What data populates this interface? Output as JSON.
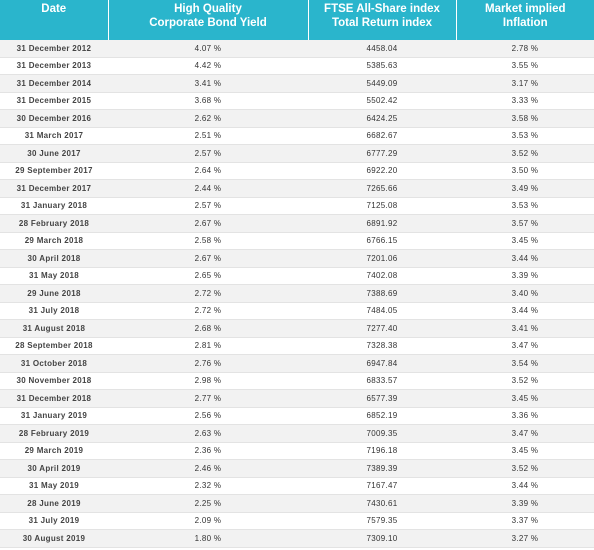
{
  "headers": {
    "date": "Date",
    "yield": "High Quality\nCorporate Bond Yield",
    "ftse": "FTSE All-Share index\nTotal Return index",
    "inflation": "Market implied\nInflation"
  },
  "rows": [
    {
      "date": "31 December 2012",
      "yield": "4.07 %",
      "ftse": "4458.04",
      "inflation": "2.78 %"
    },
    {
      "date": "31 December 2013",
      "yield": "4.42 %",
      "ftse": "5385.63",
      "inflation": "3.55 %"
    },
    {
      "date": "31 December 2014",
      "yield": "3.41 %",
      "ftse": "5449.09",
      "inflation": "3.17 %"
    },
    {
      "date": "31 December 2015",
      "yield": "3.68 %",
      "ftse": "5502.42",
      "inflation": "3.33 %"
    },
    {
      "date": "30 December 2016",
      "yield": "2.62 %",
      "ftse": "6424.25",
      "inflation": "3.58 %"
    },
    {
      "date": "31 March 2017",
      "yield": "2.51 %",
      "ftse": "6682.67",
      "inflation": "3.53 %"
    },
    {
      "date": "30 June 2017",
      "yield": "2.57 %",
      "ftse": "6777.29",
      "inflation": "3.52 %"
    },
    {
      "date": "29 September 2017",
      "yield": "2.64 %",
      "ftse": "6922.20",
      "inflation": "3.50 %"
    },
    {
      "date": "31 December 2017",
      "yield": "2.44 %",
      "ftse": "7265.66",
      "inflation": "3.49 %"
    },
    {
      "date": "31 January 2018",
      "yield": "2.57 %",
      "ftse": "7125.08",
      "inflation": "3.53 %"
    },
    {
      "date": "28 February 2018",
      "yield": "2.67 %",
      "ftse": "6891.92",
      "inflation": "3.57 %"
    },
    {
      "date": "29 March 2018",
      "yield": "2.58 %",
      "ftse": "6766.15",
      "inflation": "3.45 %"
    },
    {
      "date": "30 April 2018",
      "yield": "2.67 %",
      "ftse": "7201.06",
      "inflation": "3.44 %"
    },
    {
      "date": "31 May 2018",
      "yield": "2.65 %",
      "ftse": "7402.08",
      "inflation": "3.39 %"
    },
    {
      "date": "29 June 2018",
      "yield": "2.72 %",
      "ftse": "7388.69",
      "inflation": "3.40 %"
    },
    {
      "date": "31 July 2018",
      "yield": "2.72 %",
      "ftse": "7484.05",
      "inflation": "3.44 %"
    },
    {
      "date": "31 August 2018",
      "yield": "2.68 %",
      "ftse": "7277.40",
      "inflation": "3.41 %"
    },
    {
      "date": "28 September 2018",
      "yield": "2.81 %",
      "ftse": "7328.38",
      "inflation": "3.47 %"
    },
    {
      "date": "31 October 2018",
      "yield": "2.76 %",
      "ftse": "6947.84",
      "inflation": "3.54 %"
    },
    {
      "date": "30 November 2018",
      "yield": "2.98 %",
      "ftse": "6833.57",
      "inflation": "3.52 %"
    },
    {
      "date": "31 December 2018",
      "yield": "2.77 %",
      "ftse": "6577.39",
      "inflation": "3.45 %"
    },
    {
      "date": "31 January 2019",
      "yield": "2.56 %",
      "ftse": "6852.19",
      "inflation": "3.36 %"
    },
    {
      "date": "28 February 2019",
      "yield": "2.63 %",
      "ftse": "7009.35",
      "inflation": "3.47 %"
    },
    {
      "date": "29 March 2019",
      "yield": "2.36 %",
      "ftse": "7196.18",
      "inflation": "3.45 %"
    },
    {
      "date": "30 April 2019",
      "yield": "2.46 %",
      "ftse": "7389.39",
      "inflation": "3.52 %"
    },
    {
      "date": "31 May 2019",
      "yield": "2.32 %",
      "ftse": "7167.47",
      "inflation": "3.44 %"
    },
    {
      "date": "28 June 2019",
      "yield": "2.25 %",
      "ftse": "7430.61",
      "inflation": "3.39 %"
    },
    {
      "date": "31 July 2019",
      "yield": "2.09 %",
      "ftse": "7579.35",
      "inflation": "3.37 %"
    },
    {
      "date": "30 August 2019",
      "yield": "1.80 %",
      "ftse": "7309.10",
      "inflation": "3.27 %"
    }
  ]
}
